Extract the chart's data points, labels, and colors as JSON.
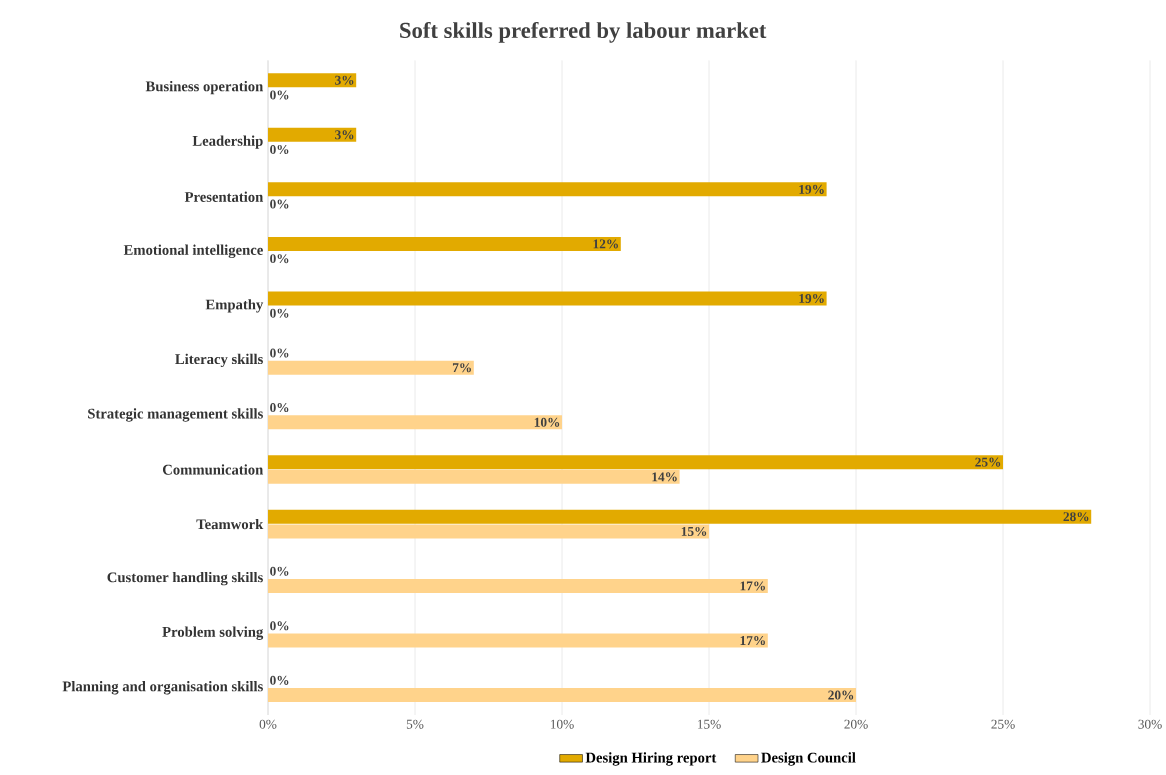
{
  "chart_data": {
    "type": "bar",
    "orientation": "horizontal",
    "title": "Soft skills preferred by labour market",
    "categories": [
      "Business operation",
      "Leadership",
      "Presentation",
      "Emotional intelligence",
      "Empathy",
      "Literacy skills",
      "Strategic management skills",
      "Communication",
      "Teamwork",
      "Customer handling skills",
      "Problem solving",
      "Planning and organisation skills"
    ],
    "series": [
      {
        "name": "Design Hiring report",
        "color": "#e2aa00",
        "values": [
          3,
          3,
          19,
          12,
          19,
          0,
          0,
          25,
          28,
          0,
          0,
          0
        ],
        "value_labels": [
          "3%",
          "3%",
          "19%",
          "12%",
          "19%",
          "0%",
          "0%",
          "25%",
          "28%",
          "0%",
          "0%",
          "0%"
        ]
      },
      {
        "name": "Design Council",
        "color": "#ffd38b",
        "values": [
          0,
          0,
          0,
          0,
          0,
          7,
          10,
          14,
          15,
          17,
          17,
          20
        ],
        "value_labels": [
          "0%",
          "0%",
          "0%",
          "0%",
          "0%",
          "7%",
          "10%",
          "14%",
          "15%",
          "17%",
          "17%",
          "20%"
        ]
      }
    ],
    "xlim": [
      0,
      30
    ],
    "xticks": [
      {
        "value": 0,
        "label": "0%"
      },
      {
        "value": 5,
        "label": "5%"
      },
      {
        "value": 10,
        "label": "10%"
      },
      {
        "value": 15,
        "label": "15%"
      },
      {
        "value": 20,
        "label": "20%"
      },
      {
        "value": 25,
        "label": "25%"
      },
      {
        "value": 30,
        "label": "30%"
      }
    ],
    "grid": "x",
    "legend": "bottom"
  }
}
